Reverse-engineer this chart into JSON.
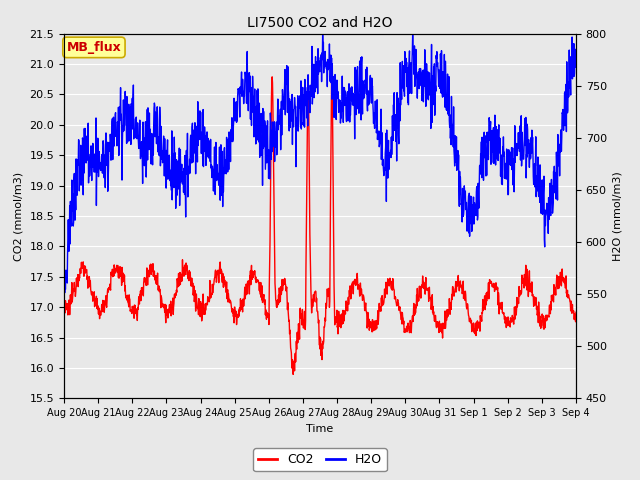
{
  "title": "LI7500 CO2 and H2O",
  "xlabel": "Time",
  "ylabel_left": "CO2 (mmol/m3)",
  "ylabel_right": "H2O (mmol/m3)",
  "ylim_left": [
    15.5,
    21.5
  ],
  "ylim_right": [
    450,
    800
  ],
  "xtick_labels": [
    "Aug 20",
    "Aug 21",
    "Aug 22",
    "Aug 23",
    "Aug 24",
    "Aug 25",
    "Aug 26",
    "Aug 27",
    "Aug 28",
    "Aug 29",
    "Aug 30",
    "Aug 31",
    "Sep 1",
    "Sep 2",
    "Sep 3",
    "Sep 4"
  ],
  "yticks_left": [
    15.5,
    16.0,
    16.5,
    17.0,
    17.5,
    18.0,
    18.5,
    19.0,
    19.5,
    20.0,
    20.5,
    21.0,
    21.5
  ],
  "yticks_right": [
    450,
    500,
    550,
    600,
    650,
    700,
    750,
    800
  ],
  "co2_color": "#FF0000",
  "h2o_color": "#0000FF",
  "fig_bg_color": "#E8E8E8",
  "plot_bg": "#E8E8E8",
  "grid_color": "#FFFFFF",
  "annotation_text": "MB_flux",
  "annotation_bg": "#FFFF99",
  "annotation_border": "#CCAA00",
  "annotation_text_color": "#CC0000",
  "legend_co2": "CO2",
  "legend_h2o": "H2O",
  "linewidth": 1.0,
  "title_fontsize": 10,
  "label_fontsize": 8,
  "tick_fontsize": 8
}
